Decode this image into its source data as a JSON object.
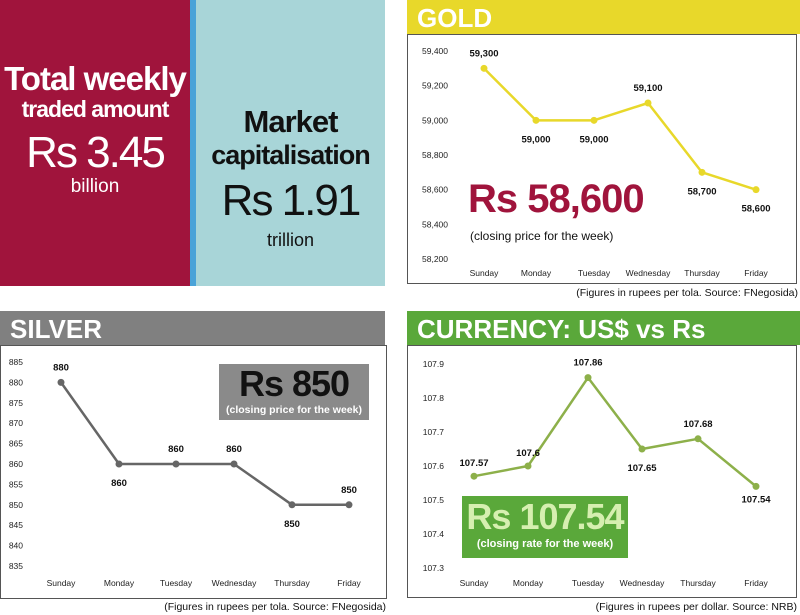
{
  "trade": {
    "title_line1": "Total weekly",
    "title_line2": "traded amount",
    "value": "Rs 3.45",
    "unit": "billion"
  },
  "cap": {
    "title_line1": "Market",
    "title_line2": "capitalisation",
    "value": "Rs 1.91",
    "unit": "trillion"
  },
  "gold": {
    "title": "GOLD",
    "headline": "Rs 58,600",
    "subline": "(closing price for the week)",
    "footnote": "(Figures in rupees per tola. Source: FNegosida)",
    "color": "#e8d82a"
  },
  "silver": {
    "title": "SILVER",
    "headline": "Rs 850",
    "subline": "(closing price for the week)",
    "footnote": "(Figures in rupees per tola. Source: FNegosida)",
    "color": "#666666"
  },
  "currency": {
    "title": "CURRENCY:  US$ vs Rs",
    "headline": "Rs 107.54",
    "subline": "(closing rate for the week)",
    "footnote": "(Figures in rupees per dollar. Source: NRB)",
    "color": "#8db04a"
  },
  "chart_data": [
    {
      "id": "gold",
      "type": "line",
      "categories": [
        "Sunday",
        "Monday",
        "Tuesday",
        "Wednesday",
        "Thursday",
        "Friday"
      ],
      "values": [
        59300,
        59000,
        59000,
        59100,
        58700,
        58600
      ],
      "labels": [
        "59,300",
        "59,000",
        "59,000",
        "59,100",
        "58,700",
        "58,600"
      ],
      "yticks": [
        "59,400",
        "59,200",
        "59,000",
        "58,800",
        "58,600",
        "58,400",
        "58,200"
      ],
      "ylim": [
        58200,
        59400
      ]
    },
    {
      "id": "silver",
      "type": "line",
      "categories": [
        "Sunday",
        "Monday",
        "Tuesday",
        "Wednesday",
        "Thursday",
        "Friday"
      ],
      "values": [
        880,
        860,
        860,
        860,
        850,
        850
      ],
      "labels": [
        "880",
        "860",
        "860",
        "860",
        "850",
        "850"
      ],
      "yticks": [
        "885",
        "880",
        "875",
        "870",
        "865",
        "860",
        "855",
        "850",
        "845",
        "840",
        "835"
      ],
      "ylim": [
        835,
        885
      ]
    },
    {
      "id": "currency",
      "type": "line",
      "categories": [
        "Sunday",
        "Monday",
        "Tuesday",
        "Wednesday",
        "Thursday",
        "Friday"
      ],
      "values": [
        107.57,
        107.6,
        107.86,
        107.65,
        107.68,
        107.54
      ],
      "labels": [
        "107.57",
        "107.6",
        "107.86",
        "107.65",
        "107.68",
        "107.54"
      ],
      "yticks": [
        "107.9",
        "107.8",
        "107.7",
        "107.6",
        "107.5",
        "107.4",
        "107.3"
      ],
      "ylim": [
        107.3,
        107.9
      ]
    }
  ]
}
